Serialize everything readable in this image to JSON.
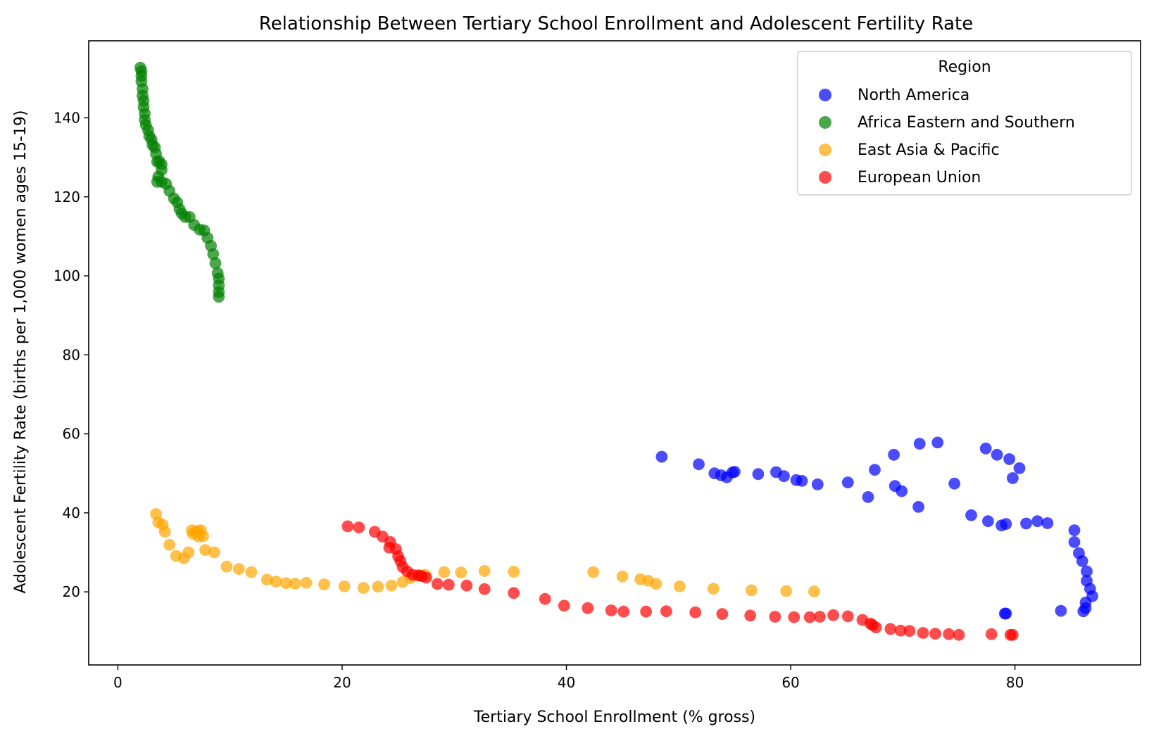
{
  "chart_data": {
    "type": "scatter",
    "title": "Relationship Between Tertiary School Enrollment and Adolescent Fertility Rate",
    "xlabel": "Tertiary School Enrollment (% gross)",
    "ylabel": "Adolescent Fertility Rate (births per 1,000 women ages 15-19)",
    "xlim": [
      -2.6,
      91.2
    ],
    "ylim": [
      1.5,
      159.5
    ],
    "xticks": [
      0,
      20,
      40,
      60,
      80
    ],
    "yticks": [
      20,
      40,
      60,
      80,
      100,
      120,
      140
    ],
    "grid": false,
    "legend": {
      "title": "Region",
      "placement": "top-right"
    },
    "series": [
      {
        "name": "North America",
        "color": "#0000ff",
        "points": [
          [
            48.5,
            54.2
          ],
          [
            51.8,
            52.3
          ],
          [
            53.2,
            50.0
          ],
          [
            53.8,
            49.5
          ],
          [
            54.3,
            49.0
          ],
          [
            54.8,
            50.2
          ],
          [
            55.0,
            50.4
          ],
          [
            57.1,
            49.8
          ],
          [
            58.7,
            50.3
          ],
          [
            59.4,
            49.3
          ],
          [
            60.5,
            48.3
          ],
          [
            61.0,
            48.1
          ],
          [
            62.4,
            47.2
          ],
          [
            65.1,
            47.7
          ],
          [
            66.9,
            44.0
          ],
          [
            67.5,
            50.9
          ],
          [
            69.2,
            54.7
          ],
          [
            69.3,
            46.8
          ],
          [
            69.9,
            45.5
          ],
          [
            71.4,
            41.5
          ],
          [
            71.5,
            57.5
          ],
          [
            73.1,
            57.8
          ],
          [
            74.6,
            47.4
          ],
          [
            76.1,
            39.4
          ],
          [
            77.4,
            56.3
          ],
          [
            77.6,
            37.9
          ],
          [
            78.4,
            54.7
          ],
          [
            78.8,
            36.8
          ],
          [
            79.2,
            37.2
          ],
          [
            79.5,
            53.6
          ],
          [
            79.8,
            48.8
          ],
          [
            80.4,
            51.3
          ],
          [
            81.0,
            37.3
          ],
          [
            82.0,
            37.9
          ],
          [
            82.9,
            37.4
          ],
          [
            85.3,
            35.6
          ],
          [
            85.3,
            32.6
          ],
          [
            85.7,
            29.8
          ],
          [
            86.0,
            27.8
          ],
          [
            86.4,
            25.2
          ],
          [
            86.4,
            22.8
          ],
          [
            86.7,
            20.8
          ],
          [
            86.9,
            18.9
          ],
          [
            86.3,
            17.3
          ],
          [
            86.3,
            15.9
          ],
          [
            86.1,
            15.1
          ],
          [
            84.1,
            15.2
          ],
          [
            79.1,
            14.5
          ],
          [
            79.2,
            14.5
          ]
        ]
      },
      {
        "name": "Africa Eastern and Southern",
        "color": "#008000",
        "points": [
          [
            2.0,
            152.7
          ],
          [
            2.1,
            151.8
          ],
          [
            2.1,
            150.6
          ],
          [
            2.1,
            149.2
          ],
          [
            2.2,
            147.3
          ],
          [
            2.2,
            145.6
          ],
          [
            2.3,
            144.3
          ],
          [
            2.3,
            142.7
          ],
          [
            2.4,
            141.1
          ],
          [
            2.4,
            139.5
          ],
          [
            2.5,
            138.2
          ],
          [
            2.7,
            136.9
          ],
          [
            2.8,
            135.4
          ],
          [
            3.0,
            134.5
          ],
          [
            3.1,
            133.1
          ],
          [
            3.3,
            132.5
          ],
          [
            3.4,
            130.9
          ],
          [
            3.5,
            128.9
          ],
          [
            3.7,
            129.0
          ],
          [
            3.9,
            128.2
          ],
          [
            3.9,
            126.8
          ],
          [
            3.6,
            125.1
          ],
          [
            3.5,
            123.8
          ],
          [
            3.9,
            123.8
          ],
          [
            4.3,
            123.3
          ],
          [
            4.6,
            121.5
          ],
          [
            5.0,
            119.6
          ],
          [
            5.3,
            118.6
          ],
          [
            5.5,
            116.9
          ],
          [
            5.7,
            115.8
          ],
          [
            6.0,
            114.9
          ],
          [
            6.4,
            114.9
          ],
          [
            6.8,
            112.9
          ],
          [
            7.3,
            111.7
          ],
          [
            7.7,
            111.5
          ],
          [
            8.0,
            109.6
          ],
          [
            8.3,
            107.6
          ],
          [
            8.5,
            105.5
          ],
          [
            8.7,
            103.2
          ],
          [
            8.9,
            100.7
          ],
          [
            9.0,
            99.3
          ],
          [
            9.0,
            97.6
          ],
          [
            9.0,
            95.9
          ],
          [
            9.0,
            94.7
          ]
        ]
      },
      {
        "name": "East Asia & Pacific",
        "color": "#ffa500",
        "points": [
          [
            3.4,
            39.7
          ],
          [
            3.6,
            37.6
          ],
          [
            4.0,
            37.0
          ],
          [
            4.2,
            35.2
          ],
          [
            4.6,
            31.9
          ],
          [
            5.2,
            29.1
          ],
          [
            5.9,
            28.5
          ],
          [
            6.3,
            30.0
          ],
          [
            6.6,
            35.6
          ],
          [
            6.7,
            34.7
          ],
          [
            6.9,
            35.1
          ],
          [
            7.1,
            35.4
          ],
          [
            7.2,
            34.0
          ],
          [
            7.4,
            35.6
          ],
          [
            7.6,
            34.1
          ],
          [
            7.8,
            30.6
          ],
          [
            8.6,
            30.0
          ],
          [
            9.7,
            26.4
          ],
          [
            10.8,
            25.8
          ],
          [
            11.9,
            25.0
          ],
          [
            13.3,
            23.1
          ],
          [
            14.1,
            22.6
          ],
          [
            15.0,
            22.2
          ],
          [
            15.8,
            22.1
          ],
          [
            16.8,
            22.3
          ],
          [
            18.4,
            21.9
          ],
          [
            20.2,
            21.4
          ],
          [
            21.9,
            21.0
          ],
          [
            23.2,
            21.3
          ],
          [
            24.4,
            21.6
          ],
          [
            25.4,
            22.5
          ],
          [
            26.1,
            23.5
          ],
          [
            26.9,
            24.1
          ],
          [
            27.4,
            24.3
          ],
          [
            29.1,
            25.0
          ],
          [
            30.6,
            24.9
          ],
          [
            32.7,
            25.3
          ],
          [
            35.3,
            25.1
          ],
          [
            42.4,
            25.0
          ],
          [
            45.0,
            23.9
          ],
          [
            46.6,
            23.2
          ],
          [
            47.3,
            22.8
          ],
          [
            48.0,
            22.0
          ],
          [
            50.1,
            21.4
          ],
          [
            53.1,
            20.8
          ],
          [
            56.5,
            20.4
          ],
          [
            59.6,
            20.2
          ],
          [
            62.1,
            20.1
          ]
        ]
      },
      {
        "name": "European Union",
        "color": "#ff0000",
        "points": [
          [
            20.5,
            36.6
          ],
          [
            21.5,
            36.3
          ],
          [
            22.9,
            35.2
          ],
          [
            23.6,
            34.0
          ],
          [
            24.3,
            32.6
          ],
          [
            24.8,
            30.8
          ],
          [
            24.2,
            31.2
          ],
          [
            25.0,
            29.0
          ],
          [
            25.2,
            27.8
          ],
          [
            25.4,
            26.3
          ],
          [
            25.8,
            25.2
          ],
          [
            26.3,
            24.3
          ],
          [
            26.8,
            24.2
          ],
          [
            27.1,
            24.0
          ],
          [
            27.5,
            23.6
          ],
          [
            28.5,
            22.0
          ],
          [
            29.5,
            21.8
          ],
          [
            31.1,
            21.6
          ],
          [
            32.7,
            20.7
          ],
          [
            35.3,
            19.7
          ],
          [
            38.1,
            18.2
          ],
          [
            39.8,
            16.5
          ],
          [
            41.9,
            15.9
          ],
          [
            44.0,
            15.3
          ],
          [
            45.1,
            15.0
          ],
          [
            47.1,
            15.0
          ],
          [
            48.9,
            15.1
          ],
          [
            51.5,
            14.8
          ],
          [
            53.9,
            14.4
          ],
          [
            56.4,
            14.0
          ],
          [
            58.6,
            13.7
          ],
          [
            60.3,
            13.6
          ],
          [
            61.7,
            13.6
          ],
          [
            62.6,
            13.7
          ],
          [
            63.8,
            14.1
          ],
          [
            65.1,
            13.8
          ],
          [
            66.4,
            12.9
          ],
          [
            67.1,
            12.0
          ],
          [
            67.3,
            11.6
          ],
          [
            67.6,
            11.0
          ],
          [
            68.9,
            10.6
          ],
          [
            69.8,
            10.2
          ],
          [
            70.6,
            10.1
          ],
          [
            71.8,
            9.6
          ],
          [
            72.9,
            9.4
          ],
          [
            74.1,
            9.3
          ],
          [
            75.0,
            9.1
          ],
          [
            77.9,
            9.3
          ],
          [
            79.6,
            9.1
          ],
          [
            79.8,
            9.1
          ]
        ]
      }
    ]
  }
}
